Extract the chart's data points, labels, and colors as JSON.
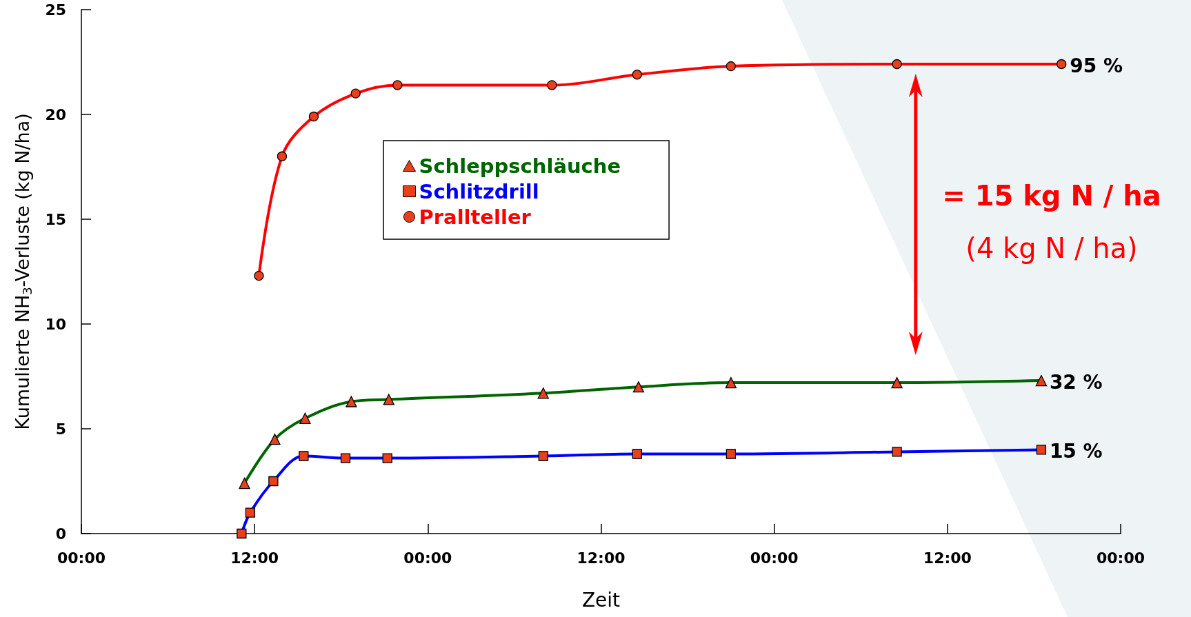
{
  "chart_data": {
    "type": "line",
    "xlabel": "Zeit",
    "ylabel": "Kumulierte NH$_{3}$-Verluste (kg N/ha)",
    "xlim": [
      "--01-01T00:00",
      "--01-04T00:00"
    ],
    "ylim": [
      0,
      25
    ],
    "xticks": [
      {
        "value": "--01-01T00:00",
        "label": "00:00"
      },
      {
        "value": "--01-01T12:00",
        "label": "12:00"
      },
      {
        "value": "--01-02T00:00",
        "label": "00:00"
      },
      {
        "value": "--01-02T12:00",
        "label": "12:00"
      },
      {
        "value": "--01-03T00:00",
        "label": "00:00"
      },
      {
        "value": "--01-03T12:00",
        "label": "12:00"
      },
      {
        "value": "--01-04T00:00",
        "label": "00:00"
      }
    ],
    "yticks": [
      0,
      5,
      10,
      15,
      20,
      25
    ],
    "grid": false,
    "legend": "top",
    "line_style": "solid",
    "series": [
      {
        "name": "Schleppschläuche",
        "color": "#006400",
        "marker": "triangle",
        "x": [
          "--01-01T11:18",
          "--01-01T13:24",
          "--01-01T15:30",
          "--01-01T18:42",
          "--01-01T21:18",
          "--01-02T08:00",
          "--01-02T14:36",
          "--01-02T21:00",
          "--01-03T08:30",
          "--01-03T18:30"
        ],
        "values": [
          2.4,
          4.5,
          5.5,
          6.3,
          6.4,
          6.7,
          7.0,
          7.2,
          7.2,
          7.3
        ]
      },
      {
        "name": "Schlitzdrill",
        "color": "#0000ff",
        "marker": "square",
        "x": [
          "--01-01T11:06",
          "--01-01T11:42",
          "--01-01T13:18",
          "--01-01T15:24",
          "--01-01T18:18",
          "--01-01T21:12",
          "--01-02T08:00",
          "--01-02T14:30",
          "--01-02T21:00",
          "--01-03T08:30",
          "--01-03T18:30"
        ],
        "values": [
          0,
          1.0,
          2.5,
          3.7,
          3.6,
          3.6,
          3.7,
          3.8,
          3.8,
          3.9,
          4.0
        ]
      },
      {
        "name": "Prallteller",
        "color": "#ff0000",
        "marker": "circle",
        "x": [
          "--01-01T12:18",
          "--01-01T13:54",
          "--01-01T16:06",
          "--01-01T19:00",
          "--01-01T21:54",
          "--01-02T08:36",
          "--01-02T14:30",
          "--01-02T21:00",
          "--01-03T08:30",
          "--01-03T19:54"
        ],
        "values": [
          12.3,
          18.0,
          19.9,
          21.0,
          21.4,
          21.4,
          21.9,
          22.3,
          22.4,
          22.4
        ]
      }
    ],
    "annotations": [
      {
        "text": "32 %",
        "x": "--01-03T18:30",
        "y": 7.3
      },
      {
        "text": "15 %",
        "x": "--01-03T18:30",
        "y": 4.0
      },
      {
        "text": "95 %",
        "x": "--01-03T19:54",
        "y": 22.4
      },
      "= 15 kg N / ha",
      "(4 kg N / ha)"
    ]
  }
}
